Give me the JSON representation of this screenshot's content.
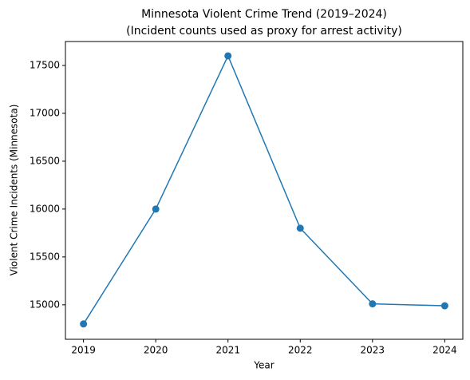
{
  "chart_data": {
    "type": "line",
    "title": "Minnesota Violent Crime Trend (2019–2024)",
    "subtitle": "(Incident counts used as proxy for arrest activity)",
    "xlabel": "Year",
    "ylabel": "Violent Crime Incidents (Minnesota)",
    "x": [
      2019,
      2020,
      2021,
      2022,
      2023,
      2024
    ],
    "series": [
      {
        "name": "Violent Crime Incidents",
        "color": "#1f77b4",
        "values": [
          14800,
          16000,
          17600,
          15800,
          15010,
          14990
        ]
      }
    ],
    "xlim": [
      2018.75,
      2024.25
    ],
    "xticks": [
      2019,
      2020,
      2021,
      2022,
      2023,
      2024
    ],
    "ylim": [
      14640,
      17750
    ],
    "yticks": [
      15000,
      15500,
      16000,
      16500,
      17000,
      17500
    ],
    "grid": false
  }
}
